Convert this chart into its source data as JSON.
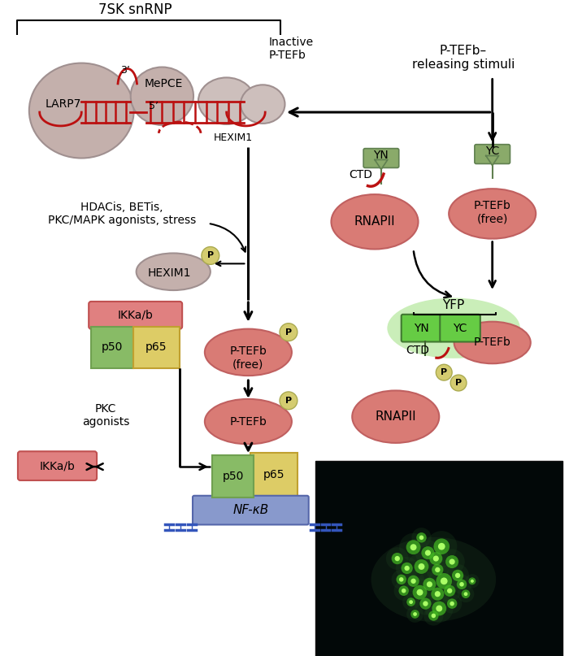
{
  "bg_color": "#ffffff",
  "snrnp_bracket_label": "7SK snRNP",
  "inactive_label": "Inactive\nP-TEFb",
  "larp7_label": "LARP7",
  "mepce_label": "MePCE",
  "hexim1_label": "HEXIM1",
  "three_prime": "3’",
  "five_prime": "5’",
  "hdacis_label": "HDACis, BETis,\nPKC/MAPK agonists, stress",
  "hexim1_free_label": "HEXIM1",
  "ptefb_free_left_label": "P-TEFb\n(free)",
  "ptefb_label": "P-TEFb",
  "ikkab_top_label": "IKKa/b",
  "p50_label": "p50",
  "p65_label": "p65",
  "pkc_label": "PKC\nagonists",
  "ikkab_bottom_label": "IKKa/b",
  "nfkb_label": "NF-κB",
  "releasing_stimuli_label": "P-TEFb–\nreleasing stimuli",
  "yn_label": "YN",
  "yc_label": "YC",
  "ctd_label_top": "CTD",
  "rnapii_top_label": "RNAPII",
  "ptefb_free_right_label": "P-TEFb\n(free)",
  "yfp_label": "YFP",
  "yn2_label": "YN",
  "yc2_label": "YC",
  "ctd_label_bottom": "CTD",
  "ptefb_bottom_label": "P-TEFb",
  "rnapii_bottom_label": "RNAPII",
  "salmon_color": "#d97b75",
  "gray_ellipse": "#c4b0ac",
  "gray_light": "#cdbfbc",
  "green_tag": "#8aaa6a",
  "green_bright": "#66cc44",
  "green_glow": "#a0e080",
  "yellow_box": "#e8d888",
  "blue_box": "#8899cc",
  "red_color": "#bb1111",
  "ikkab_color": "#e08080",
  "p50_color": "#88bb66",
  "p65_color": "#ddcc66",
  "p_circle_color": "#d4cc70",
  "p_circle_edge": "#aaaa50"
}
